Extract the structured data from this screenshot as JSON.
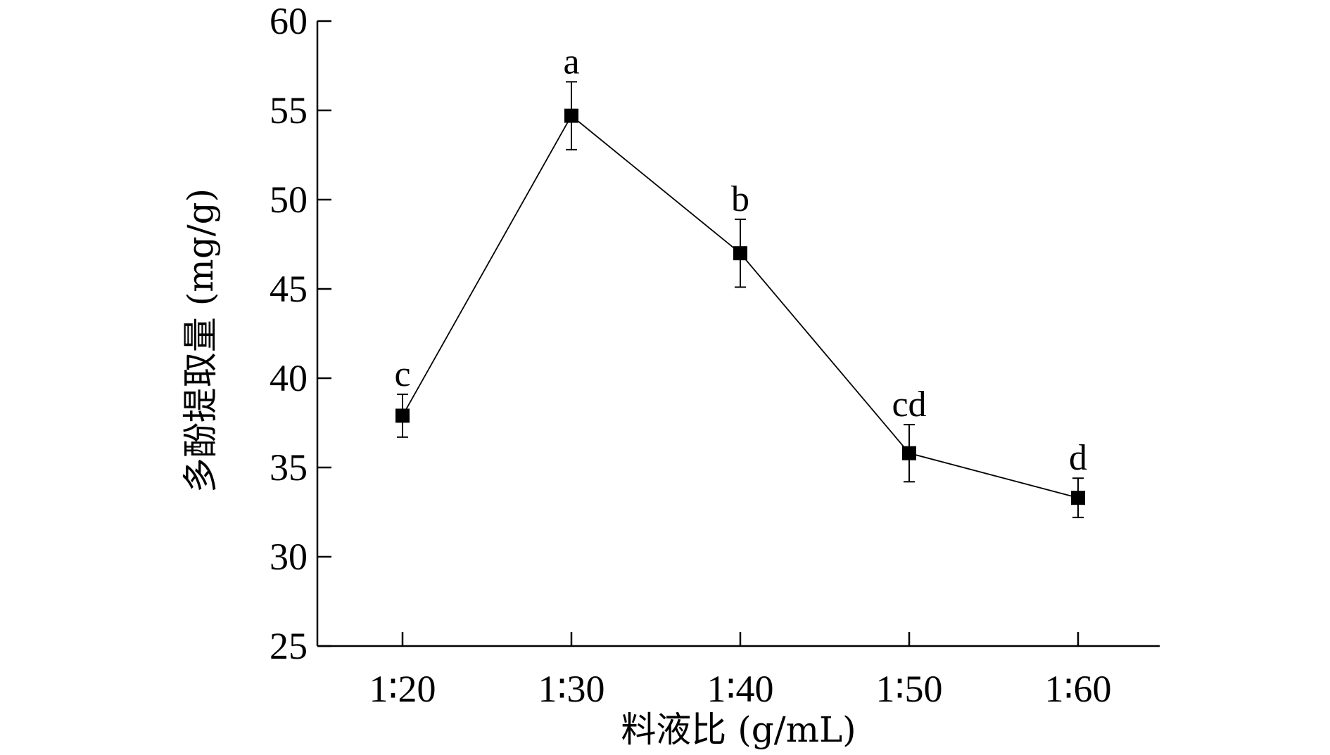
{
  "chart_data": {
    "type": "line",
    "title": "",
    "xlabel": "料液比 (g/mL)",
    "ylabel": "多酚提取量 (mg/g)",
    "categories": [
      "1∶20",
      "1∶30",
      "1∶40",
      "1∶50",
      "1∶60"
    ],
    "ylim": [
      25,
      60
    ],
    "yticks": [
      25,
      30,
      35,
      40,
      45,
      50,
      55,
      60
    ],
    "grid": false,
    "legend": "none",
    "series": [
      {
        "values": [
          37.9,
          54.7,
          47.0,
          35.8,
          33.3
        ],
        "errors": [
          1.2,
          1.9,
          1.9,
          1.6,
          1.1
        ],
        "significance": [
          "c",
          "a",
          "b",
          "cd",
          "d"
        ],
        "marker": "square",
        "color": "#000000"
      }
    ]
  }
}
